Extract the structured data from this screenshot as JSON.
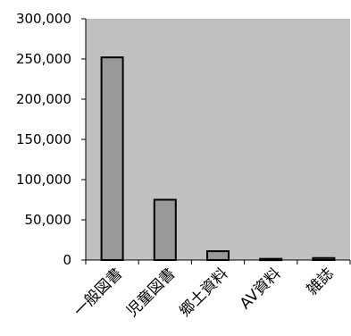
{
  "chart_data": {
    "type": "bar",
    "categories": [
      "一般図書",
      "児童図書",
      "郷土資料",
      "AV資料",
      "雑誌"
    ],
    "values": [
      252000,
      75000,
      11000,
      1500,
      2500
    ],
    "ylim": [
      0,
      300000
    ],
    "yticks": [
      0,
      50000,
      100000,
      150000,
      200000,
      250000,
      300000
    ],
    "ytick_labels": [
      "0",
      "50,000",
      "100,000",
      "150,000",
      "200,000",
      "250,000",
      "300,000"
    ],
    "grid": false,
    "legend": "none",
    "colors": {
      "plot_background": "#c0c0c0",
      "bar_fill": "#999999",
      "bar_stroke": "#000000",
      "axis": "#000000"
    }
  }
}
